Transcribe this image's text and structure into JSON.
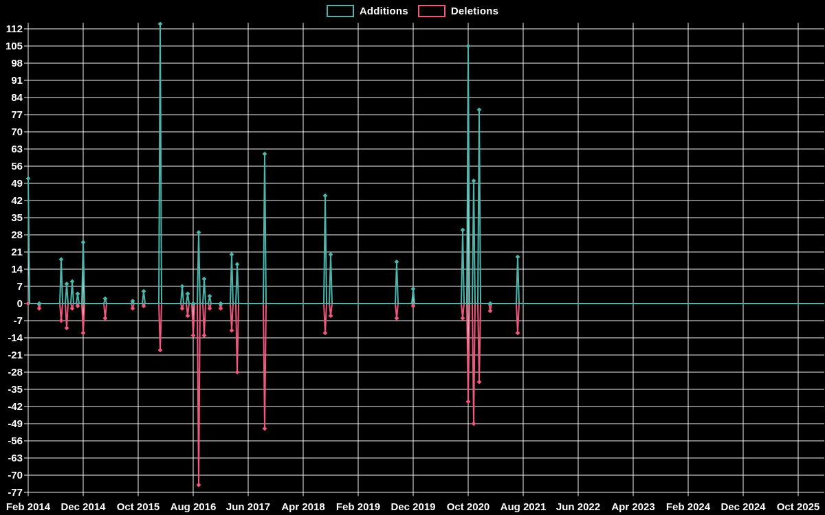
{
  "legend": {
    "items": [
      {
        "label": "Additions",
        "color": "#4db6ac"
      },
      {
        "label": "Deletions",
        "color": "#f0587e"
      }
    ]
  },
  "colors": {
    "background": "#000000",
    "grid": "#f2f2f2",
    "text": "#ffffff",
    "additions": "#4db6ac",
    "deletions": "#f0587e"
  },
  "chart_data": {
    "type": "line",
    "title": "",
    "xlabel": "",
    "ylabel": "",
    "grid": true,
    "legend_position": "top-center",
    "x_axis": {
      "start_month": "2014-02",
      "months_per_tick": 10,
      "tick_labels": [
        "Feb 2014",
        "Dec 2014",
        "Oct 2015",
        "Aug 2016",
        "Jun 2017",
        "Apr 2018",
        "Feb 2019",
        "Dec 2019",
        "Oct 2020",
        "Aug 2021",
        "Jun 2022",
        "Apr 2023",
        "Feb 2024",
        "Dec 2024",
        "Oct 2025"
      ]
    },
    "y_axis": {
      "tick_min": -77,
      "tick_max": 112,
      "tick_step": 7,
      "ylim": [
        -77.9,
        114.6
      ],
      "tick_labels": [
        "112",
        "105",
        "98",
        "91",
        "84",
        "77",
        "70",
        "63",
        "56",
        "49",
        "42",
        "35",
        "28",
        "21",
        "14",
        "7",
        "0",
        "-7",
        "-14",
        "-21",
        "-28",
        "-35",
        "-42",
        "-49",
        "-56",
        "-63",
        "-70",
        "-77"
      ]
    },
    "baseline": 0,
    "series": [
      {
        "name": "Additions",
        "color": "#4db6ac",
        "marker": "diamond",
        "points": [
          {
            "t": "2014-02",
            "v": 51
          },
          {
            "t": "2014-04",
            "v": 0
          },
          {
            "t": "2014-08",
            "v": 18
          },
          {
            "t": "2014-09",
            "v": 8
          },
          {
            "t": "2014-10",
            "v": 9
          },
          {
            "t": "2014-11",
            "v": 4
          },
          {
            "t": "2014-12",
            "v": 25
          },
          {
            "t": "2015-04",
            "v": 2
          },
          {
            "t": "2015-09",
            "v": 1
          },
          {
            "t": "2015-11",
            "v": 5
          },
          {
            "t": "2016-02",
            "v": 114
          },
          {
            "t": "2016-06",
            "v": 7
          },
          {
            "t": "2016-07",
            "v": 4
          },
          {
            "t": "2016-08",
            "v": 0
          },
          {
            "t": "2016-09",
            "v": 29
          },
          {
            "t": "2016-10",
            "v": 10
          },
          {
            "t": "2016-11",
            "v": 3
          },
          {
            "t": "2017-01",
            "v": 0
          },
          {
            "t": "2017-03",
            "v": 20
          },
          {
            "t": "2017-04",
            "v": 16
          },
          {
            "t": "2017-09",
            "v": 61
          },
          {
            "t": "2018-08",
            "v": 44
          },
          {
            "t": "2018-09",
            "v": 20
          },
          {
            "t": "2019-09",
            "v": 17
          },
          {
            "t": "2019-12",
            "v": 6
          },
          {
            "t": "2020-09",
            "v": 30
          },
          {
            "t": "2020-10",
            "v": 105
          },
          {
            "t": "2020-11",
            "v": 50
          },
          {
            "t": "2020-12",
            "v": 79
          },
          {
            "t": "2021-02",
            "v": 0
          },
          {
            "t": "2021-07",
            "v": 19
          }
        ]
      },
      {
        "name": "Deletions",
        "color": "#f0587e",
        "marker": "diamond",
        "points": [
          {
            "t": "2014-02",
            "v": 0
          },
          {
            "t": "2014-04",
            "v": -2
          },
          {
            "t": "2014-08",
            "v": -7
          },
          {
            "t": "2014-09",
            "v": -10
          },
          {
            "t": "2014-10",
            "v": -2
          },
          {
            "t": "2014-11",
            "v": -1
          },
          {
            "t": "2014-12",
            "v": -12
          },
          {
            "t": "2015-04",
            "v": -6
          },
          {
            "t": "2015-09",
            "v": -2
          },
          {
            "t": "2015-11",
            "v": -1
          },
          {
            "t": "2016-02",
            "v": -19
          },
          {
            "t": "2016-06",
            "v": -2
          },
          {
            "t": "2016-07",
            "v": -5
          },
          {
            "t": "2016-08",
            "v": -13
          },
          {
            "t": "2016-09",
            "v": -74
          },
          {
            "t": "2016-10",
            "v": -13
          },
          {
            "t": "2016-11",
            "v": -2
          },
          {
            "t": "2017-01",
            "v": -2
          },
          {
            "t": "2017-03",
            "v": -11
          },
          {
            "t": "2017-04",
            "v": -28
          },
          {
            "t": "2017-09",
            "v": -51
          },
          {
            "t": "2018-08",
            "v": -12
          },
          {
            "t": "2018-09",
            "v": -5
          },
          {
            "t": "2019-09",
            "v": -6
          },
          {
            "t": "2019-12",
            "v": -1
          },
          {
            "t": "2020-09",
            "v": -6
          },
          {
            "t": "2020-10",
            "v": -40
          },
          {
            "t": "2020-11",
            "v": -49
          },
          {
            "t": "2020-12",
            "v": -32
          },
          {
            "t": "2021-02",
            "v": -3
          },
          {
            "t": "2021-07",
            "v": -12
          }
        ]
      }
    ]
  }
}
